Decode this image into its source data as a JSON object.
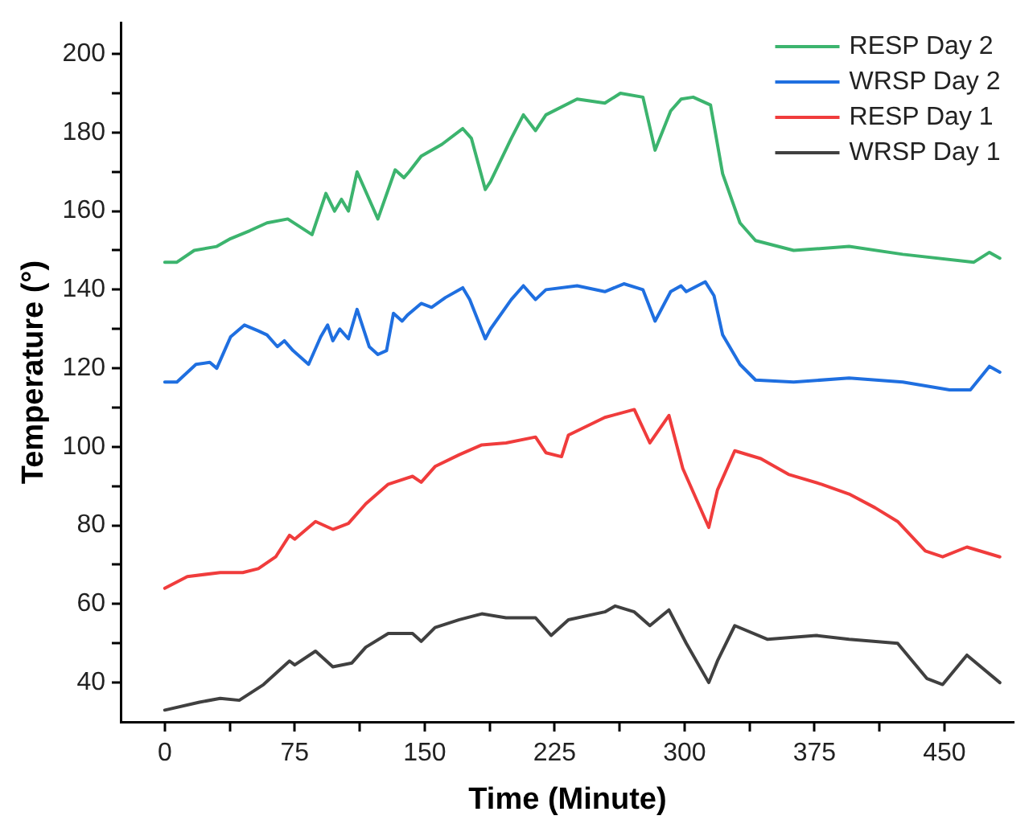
{
  "chart_data": {
    "type": "line",
    "xlabel": "Time (Minute)",
    "ylabel": "Temperature (°)",
    "xlim": [
      -25,
      490
    ],
    "ylim": [
      30,
      208
    ],
    "xticks": [
      0,
      {
        "value": 37.5,
        "label": null
      },
      75,
      {
        "value": 112.5,
        "label": null
      },
      150,
      {
        "value": 187.5,
        "label": null
      },
      225,
      {
        "value": 262.5,
        "label": null
      },
      300,
      {
        "value": 337.5,
        "label": null
      },
      375,
      {
        "value": 412.5,
        "label": null
      },
      450
    ],
    "yticks": [
      40,
      {
        "value": 50,
        "label": null
      },
      60,
      {
        "value": 70,
        "label": null
      },
      80,
      {
        "value": 90,
        "label": null
      },
      100,
      {
        "value": 110,
        "label": null
      },
      120,
      {
        "value": 130,
        "label": null
      },
      140,
      {
        "value": 150,
        "label": null
      },
      160,
      {
        "value": 170,
        "label": null
      },
      180,
      {
        "value": 190,
        "label": null
      },
      200
    ],
    "grid": false,
    "legend": "top right",
    "marker": "none",
    "line_style": "solid",
    "series": [
      {
        "name": "RESP Day 2",
        "color": "#3cb46e",
        "x": [
          0,
          7,
          17,
          30,
          38,
          49,
          59,
          71,
          85,
          93,
          98,
          102,
          106,
          111,
          123,
          133,
          138,
          141,
          148,
          160,
          172,
          177,
          185,
          188,
          200,
          207,
          214,
          220,
          238,
          254,
          263,
          276,
          283,
          292,
          298,
          305,
          315,
          322,
          332,
          341,
          363,
          395,
          426,
          467,
          476,
          482
        ],
        "values": [
          147,
          147,
          150,
          151,
          153,
          155,
          157,
          158,
          154,
          164.5,
          160,
          163,
          160,
          170,
          158,
          170.5,
          168.5,
          170,
          174,
          177,
          181,
          178.5,
          165.5,
          167.5,
          178.5,
          184.5,
          180.5,
          184.5,
          188.5,
          187.5,
          190,
          189,
          175.5,
          185.5,
          188.5,
          189,
          187,
          169.5,
          157,
          152.5,
          150,
          151,
          149,
          147,
          149.5,
          148
        ]
      },
      {
        "name": "WRSP Day 2",
        "color": "#1f6fe0",
        "x": [
          0,
          7,
          18,
          26,
          30,
          35,
          38,
          46,
          54,
          59,
          65,
          69,
          74,
          83,
          90,
          94,
          97,
          101,
          106,
          111,
          118,
          123,
          128,
          132,
          137,
          140,
          148,
          154,
          162,
          172,
          176,
          185,
          188,
          200,
          207,
          214,
          220,
          238,
          254,
          265,
          276,
          283,
          292,
          298,
          301,
          312,
          317,
          322,
          332,
          341,
          363,
          395,
          426,
          453,
          465,
          476,
          482
        ],
        "values": [
          116.5,
          116.5,
          121,
          121.5,
          120,
          125,
          128,
          131,
          129.5,
          128.5,
          125.5,
          127,
          124.5,
          121,
          128,
          131,
          127,
          130,
          127.5,
          135,
          125.5,
          123.5,
          124.5,
          134,
          132,
          133.5,
          136.5,
          135.5,
          138,
          140.5,
          137.5,
          127.5,
          130,
          137.5,
          141,
          137.5,
          140,
          141,
          139.5,
          141.5,
          140,
          132,
          139.5,
          141,
          139.5,
          142,
          138.5,
          128.5,
          121,
          117,
          116.5,
          117.5,
          116.5,
          114.5,
          114.5,
          120.5,
          119
        ]
      },
      {
        "name": "RESP Day 1",
        "color": "#f03c3c",
        "x": [
          0,
          13,
          32,
          45,
          54,
          64,
          72,
          75,
          87,
          97,
          106,
          116,
          129,
          143,
          148,
          156,
          170,
          183,
          197,
          214,
          220,
          229,
          233,
          254,
          271,
          280,
          291,
          299,
          314,
          319,
          329,
          344,
          360,
          379,
          395,
          410,
          423,
          439,
          449,
          463,
          482
        ],
        "values": [
          64,
          67,
          68,
          68,
          69,
          72,
          77.5,
          76.5,
          81,
          79,
          80.5,
          85.5,
          90.5,
          92.5,
          91,
          95,
          98,
          100.5,
          101,
          102.5,
          98.5,
          97.5,
          103,
          107.5,
          109.5,
          101,
          108,
          94.5,
          79.5,
          89,
          99,
          97,
          93,
          90.5,
          88,
          84.5,
          81,
          73.5,
          72,
          74.5,
          72
        ]
      },
      {
        "name": "WRSP Day 1",
        "color": "#404040",
        "x": [
          0,
          20,
          32,
          43,
          57,
          72,
          75,
          87,
          97,
          108,
          116,
          129,
          143,
          148,
          156,
          170,
          183,
          197,
          214,
          223,
          233,
          254,
          260,
          271,
          280,
          291,
          301,
          314,
          319,
          329,
          348,
          376,
          395,
          423,
          440,
          449,
          463,
          482
        ],
        "values": [
          33,
          35,
          36,
          35.5,
          39.5,
          45.5,
          44.5,
          48,
          44,
          45,
          49,
          52.5,
          52.5,
          50.5,
          54,
          56,
          57.5,
          56.5,
          56.5,
          52,
          56,
          58,
          59.5,
          58,
          54.5,
          58.5,
          50,
          40,
          45.5,
          54.5,
          51,
          52,
          51,
          50,
          41,
          39.5,
          47,
          40
        ]
      }
    ]
  }
}
